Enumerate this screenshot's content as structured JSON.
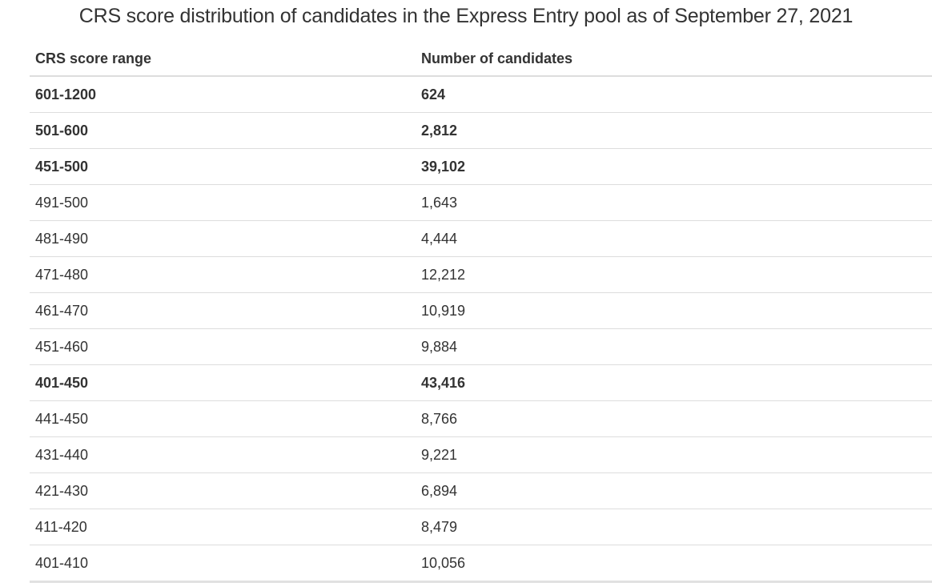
{
  "title": "CRS score distribution of candidates in the Express Entry pool as of September 27, 2021",
  "table": {
    "headers": [
      "CRS score range",
      "Number of candidates"
    ],
    "rows": [
      {
        "range": "601-1200",
        "count": "624",
        "bold": true
      },
      {
        "range": "501-600",
        "count": "2,812",
        "bold": true
      },
      {
        "range": "451-500",
        "count": "39,102",
        "bold": true
      },
      {
        "range": "491-500",
        "count": "1,643",
        "bold": false
      },
      {
        "range": "481-490",
        "count": "4,444",
        "bold": false
      },
      {
        "range": "471-480",
        "count": "12,212",
        "bold": false
      },
      {
        "range": "461-470",
        "count": "10,919",
        "bold": false
      },
      {
        "range": "451-460",
        "count": "9,884",
        "bold": false
      },
      {
        "range": "401-450",
        "count": "43,416",
        "bold": true
      },
      {
        "range": "441-450",
        "count": "8,766",
        "bold": false
      },
      {
        "range": "431-440",
        "count": "9,221",
        "bold": false
      },
      {
        "range": "421-430",
        "count": "6,894",
        "bold": false
      },
      {
        "range": "411-420",
        "count": "8,479",
        "bold": false
      },
      {
        "range": "401-410",
        "count": "10,056",
        "bold": false
      }
    ]
  }
}
